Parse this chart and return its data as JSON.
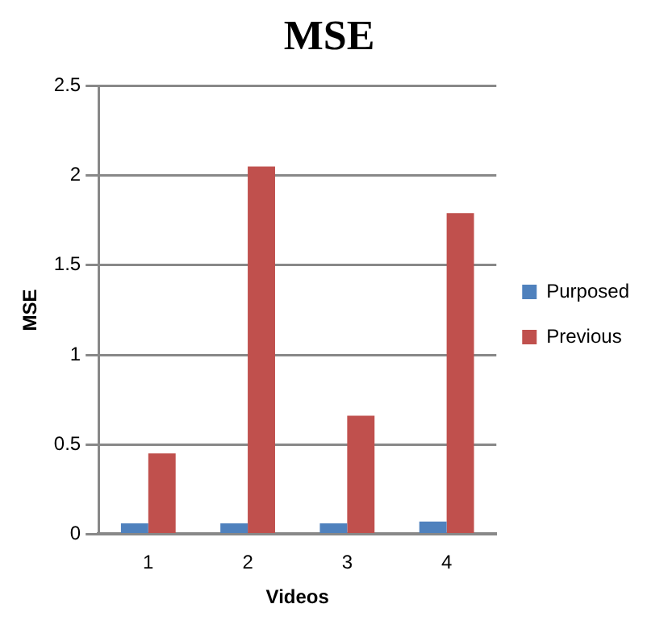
{
  "chart_data": {
    "type": "bar",
    "title": "MSE",
    "xlabel": "Videos",
    "ylabel": "MSE",
    "categories": [
      "1",
      "2",
      "3",
      "4"
    ],
    "series": [
      {
        "name": "Purposed",
        "color": "#4f81bd",
        "values": [
          0.06,
          0.06,
          0.06,
          0.07
        ]
      },
      {
        "name": "Previous",
        "color": "#c0504d",
        "values": [
          0.45,
          2.05,
          0.66,
          1.79
        ]
      }
    ],
    "ylim": [
      0,
      2.5
    ],
    "yticks": [
      0,
      0.5,
      1,
      1.5,
      2,
      2.5
    ],
    "grid": "y",
    "legend": "right"
  }
}
